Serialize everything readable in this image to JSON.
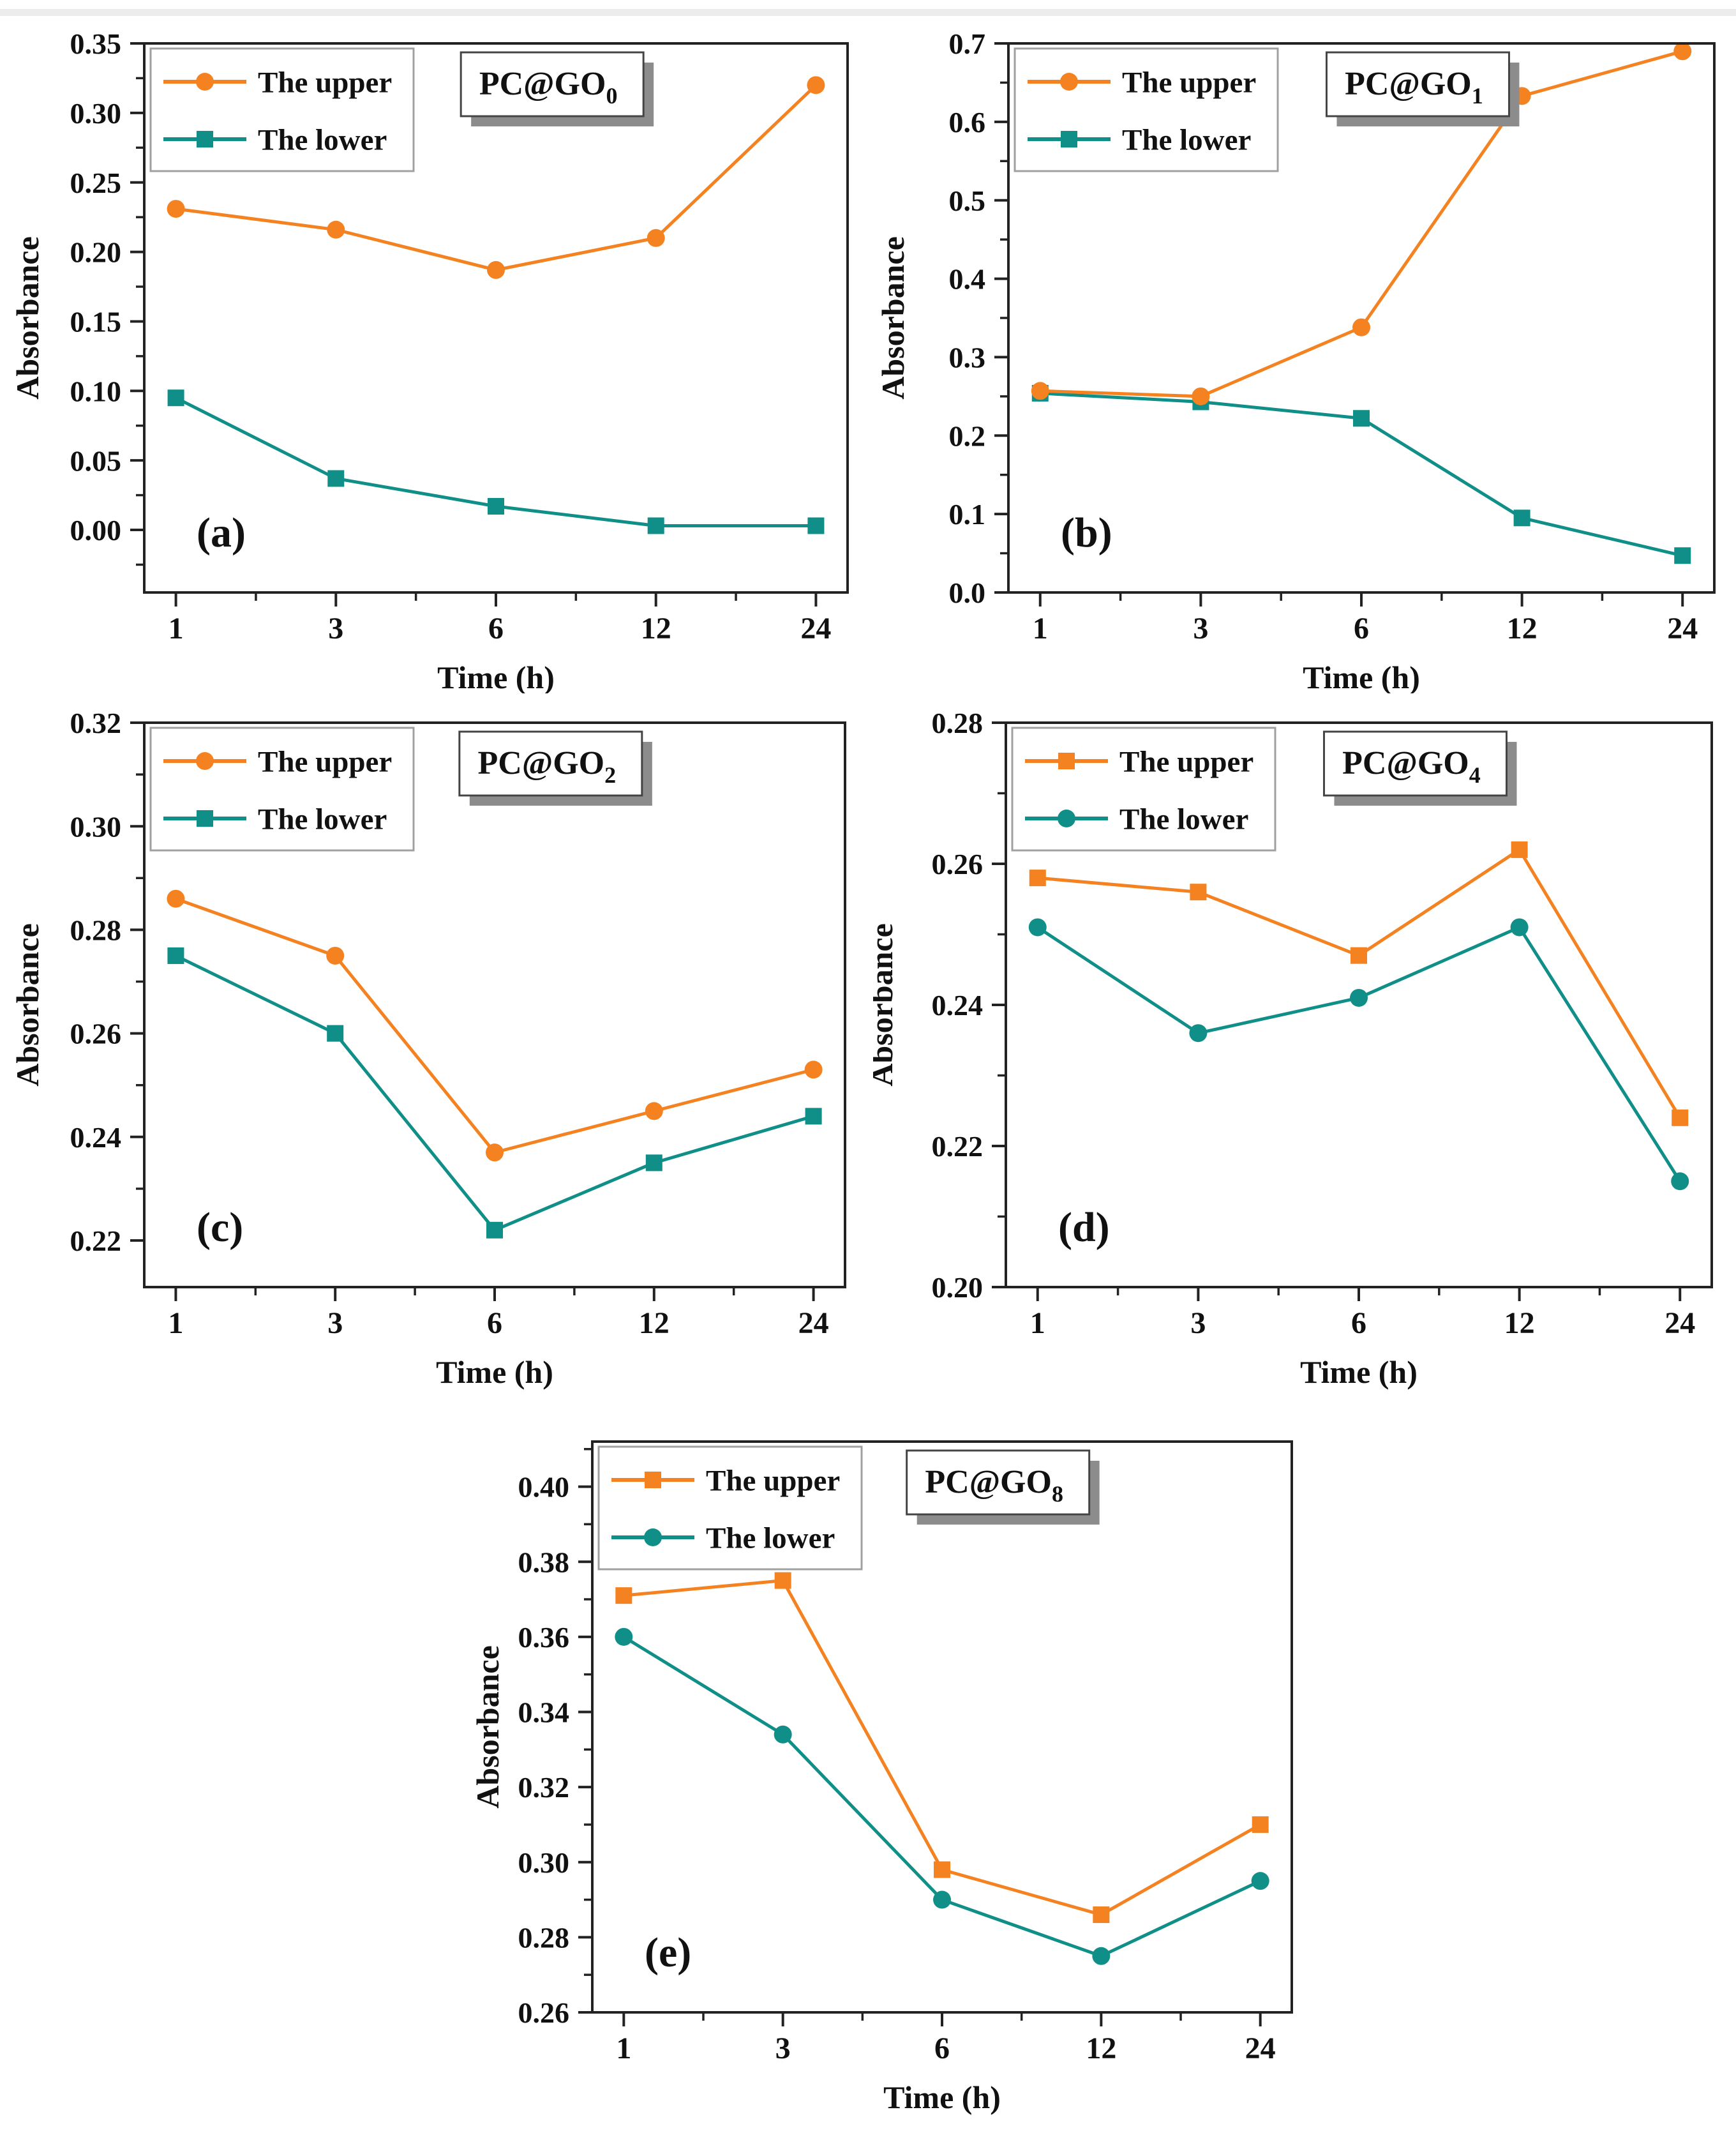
{
  "figure": {
    "xlabel": "Time (h)",
    "ylabel": "Absorbance",
    "legend_labels": [
      "The upper",
      "The lower"
    ],
    "colors": {
      "upper": "#F58220",
      "lower": "#0F8F88",
      "panel_letter": "#7030A0",
      "axis": "#222222",
      "title_shadow": "#8c8c8c"
    }
  },
  "chart_data": [
    {
      "type": "line",
      "panel_label": "(a)",
      "title": "PC@GO",
      "title_subscript": "0",
      "xlabel": "Time (h)",
      "ylabel": "Absorbance",
      "categories": [
        "1",
        "3",
        "6",
        "12",
        "24"
      ],
      "series": [
        {
          "name": "The upper",
          "marker": "circle",
          "color": "#F58220",
          "values": [
            0.231,
            0.216,
            0.187,
            0.21,
            0.32
          ]
        },
        {
          "name": "The lower",
          "marker": "square",
          "color": "#0F8F88",
          "values": [
            0.095,
            0.037,
            0.017,
            0.003,
            0.003
          ]
        }
      ],
      "ylim": [
        -0.045,
        0.35
      ],
      "yticks": [
        0.0,
        0.05,
        0.1,
        0.15,
        0.2,
        0.25,
        0.3,
        0.35
      ],
      "ytick_decimals": 2,
      "legend_position": "top-left",
      "grid": false
    },
    {
      "type": "line",
      "panel_label": "(b)",
      "title": "PC@GO",
      "title_subscript": "1",
      "xlabel": "Time (h)",
      "ylabel": "Absorbance",
      "categories": [
        "1",
        "3",
        "6",
        "12",
        "24"
      ],
      "series": [
        {
          "name": "The upper",
          "marker": "circle",
          "color": "#F58220",
          "values": [
            0.257,
            0.25,
            0.338,
            0.633,
            0.69
          ]
        },
        {
          "name": "The lower",
          "marker": "square",
          "color": "#0F8F88",
          "values": [
            0.254,
            0.243,
            0.222,
            0.095,
            0.047
          ]
        }
      ],
      "ylim": [
        0.0,
        0.7
      ],
      "yticks": [
        0.0,
        0.1,
        0.2,
        0.3,
        0.4,
        0.5,
        0.6,
        0.7
      ],
      "ytick_decimals": 1,
      "legend_position": "top-left",
      "grid": false
    },
    {
      "type": "line",
      "panel_label": "(c)",
      "title": "PC@GO",
      "title_subscript": "2",
      "xlabel": "Time (h)",
      "ylabel": "Absorbance",
      "categories": [
        "1",
        "3",
        "6",
        "12",
        "24"
      ],
      "series": [
        {
          "name": "The upper",
          "marker": "circle",
          "color": "#F58220",
          "values": [
            0.286,
            0.275,
            0.237,
            0.245,
            0.253
          ]
        },
        {
          "name": "The lower",
          "marker": "square",
          "color": "#0F8F88",
          "values": [
            0.275,
            0.26,
            0.222,
            0.235,
            0.244
          ]
        }
      ],
      "ylim": [
        0.211,
        0.32
      ],
      "yticks": [
        0.22,
        0.24,
        0.26,
        0.28,
        0.3,
        0.32
      ],
      "ytick_decimals": 2,
      "legend_position": "top-left",
      "grid": false
    },
    {
      "type": "line",
      "panel_label": "(d)",
      "title": "PC@GO",
      "title_subscript": "4",
      "xlabel": "Time (h)",
      "ylabel": "Absorbance",
      "categories": [
        "1",
        "3",
        "6",
        "12",
        "24"
      ],
      "series": [
        {
          "name": "The upper",
          "marker": "square",
          "color": "#F58220",
          "values": [
            0.258,
            0.256,
            0.247,
            0.262,
            0.224
          ]
        },
        {
          "name": "The lower",
          "marker": "circle",
          "color": "#0F8F88",
          "values": [
            0.251,
            0.236,
            0.241,
            0.251,
            0.215
          ]
        }
      ],
      "ylim": [
        0.2,
        0.28
      ],
      "yticks": [
        0.2,
        0.22,
        0.24,
        0.26,
        0.28
      ],
      "ytick_decimals": 2,
      "legend_position": "top-left",
      "grid": false
    },
    {
      "type": "line",
      "panel_label": "(e)",
      "title": "PC@GO",
      "title_subscript": "8",
      "xlabel": "Time (h)",
      "ylabel": "Absorbance",
      "categories": [
        "1",
        "3",
        "6",
        "12",
        "24"
      ],
      "series": [
        {
          "name": "The upper",
          "marker": "square",
          "color": "#F58220",
          "values": [
            0.371,
            0.375,
            0.298,
            0.286,
            0.31
          ]
        },
        {
          "name": "The lower",
          "marker": "circle",
          "color": "#0F8F88",
          "values": [
            0.36,
            0.334,
            0.29,
            0.275,
            0.295
          ]
        }
      ],
      "ylim": [
        0.26,
        0.412
      ],
      "yticks": [
        0.26,
        0.28,
        0.3,
        0.32,
        0.34,
        0.36,
        0.38,
        0.4
      ],
      "ytick_decimals": 2,
      "legend_position": "top-left",
      "grid": false
    }
  ]
}
